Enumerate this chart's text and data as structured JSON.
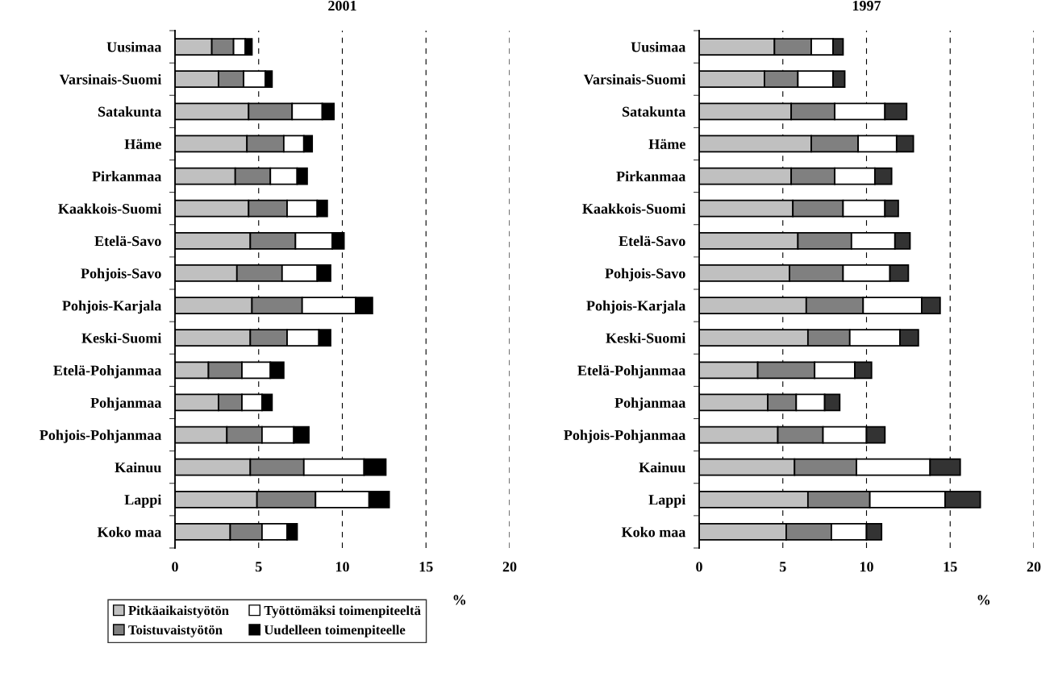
{
  "chart_data": [
    {
      "type": "bar",
      "orientation": "horizontal",
      "stacked": true,
      "title": "2001",
      "xlabel": "%",
      "categories": [
        "Uusimaa",
        "Varsinais-Suomi",
        "Satakunta",
        "Häme",
        "Pirkanmaa",
        "Kaakkois-Suomi",
        "Etelä-Savo",
        "Pohjois-Savo",
        "Pohjois-Karjala",
        "Keski-Suomi",
        "Etelä-Pohjanmaa",
        "Pohjanmaa",
        "Pohjois-Pohjanmaa",
        "Kainuu",
        "Lappi",
        "Koko maa"
      ],
      "series": [
        {
          "name": "Pitkäaikaistyötön",
          "color": "#c0c0c0",
          "values": [
            2.2,
            2.6,
            4.4,
            4.3,
            3.6,
            4.4,
            4.5,
            3.7,
            4.6,
            4.5,
            2.0,
            2.6,
            3.1,
            4.5,
            4.9,
            3.3
          ]
        },
        {
          "name": "Toistuvaistyötön",
          "color": "#808080",
          "values": [
            1.3,
            1.5,
            2.6,
            2.2,
            2.1,
            2.3,
            2.7,
            2.7,
            3.0,
            2.2,
            2.0,
            1.4,
            2.1,
            3.2,
            3.5,
            1.9
          ]
        },
        {
          "name": "Työttömäksi toimenpiteeltä",
          "color": "#ffffff",
          "values": [
            0.7,
            1.3,
            1.8,
            1.2,
            1.6,
            1.8,
            2.2,
            2.1,
            3.2,
            1.9,
            1.7,
            1.2,
            1.9,
            3.6,
            3.2,
            1.5
          ]
        },
        {
          "name": "Uudelleen toimenpiteelle",
          "color": "#000000",
          "values": [
            0.4,
            0.4,
            0.7,
            0.5,
            0.6,
            0.6,
            0.7,
            0.8,
            1.0,
            0.7,
            0.8,
            0.6,
            0.9,
            1.3,
            1.2,
            0.6
          ]
        }
      ],
      "xlim": [
        0,
        20
      ],
      "xticks": [
        0,
        5,
        10,
        15,
        20
      ],
      "grid": "x",
      "legend": "bottom"
    },
    {
      "type": "bar",
      "orientation": "horizontal",
      "stacked": true,
      "title": "1997",
      "xlabel": "%",
      "categories": [
        "Uusimaa",
        "Varsinais-Suomi",
        "Satakunta",
        "Häme",
        "Pirkanmaa",
        "Kaakkois-Suomi",
        "Etelä-Savo",
        "Pohjois-Savo",
        "Pohjois-Karjala",
        "Keski-Suomi",
        "Etelä-Pohjanmaa",
        "Pohjanmaa",
        "Pohjois-Pohjanmaa",
        "Kainuu",
        "Lappi",
        "Koko maa"
      ],
      "series": [
        {
          "color": "#c0c0c0",
          "values": [
            4.5,
            3.9,
            5.5,
            6.7,
            5.5,
            5.6,
            5.9,
            5.4,
            6.4,
            6.5,
            3.5,
            4.1,
            4.7,
            5.7,
            6.5,
            5.2
          ]
        },
        {
          "color": "#808080",
          "values": [
            2.2,
            2.0,
            2.6,
            2.8,
            2.6,
            3.0,
            3.2,
            3.2,
            3.4,
            2.5,
            3.4,
            1.7,
            2.7,
            3.7,
            3.7,
            2.7
          ]
        },
        {
          "color": "#ffffff",
          "values": [
            1.3,
            2.1,
            3.0,
            2.3,
            2.4,
            2.5,
            2.6,
            2.8,
            3.5,
            3.0,
            2.4,
            1.7,
            2.6,
            4.4,
            4.5,
            2.1
          ]
        },
        {
          "color": "#333333",
          "values": [
            0.6,
            0.7,
            1.3,
            1.0,
            1.0,
            0.8,
            0.9,
            1.1,
            1.1,
            1.1,
            1.0,
            0.9,
            1.1,
            1.8,
            2.1,
            0.9
          ]
        }
      ],
      "xlim": [
        0,
        20
      ],
      "xticks": [
        0,
        5,
        10,
        15,
        20
      ],
      "grid": "x"
    }
  ]
}
